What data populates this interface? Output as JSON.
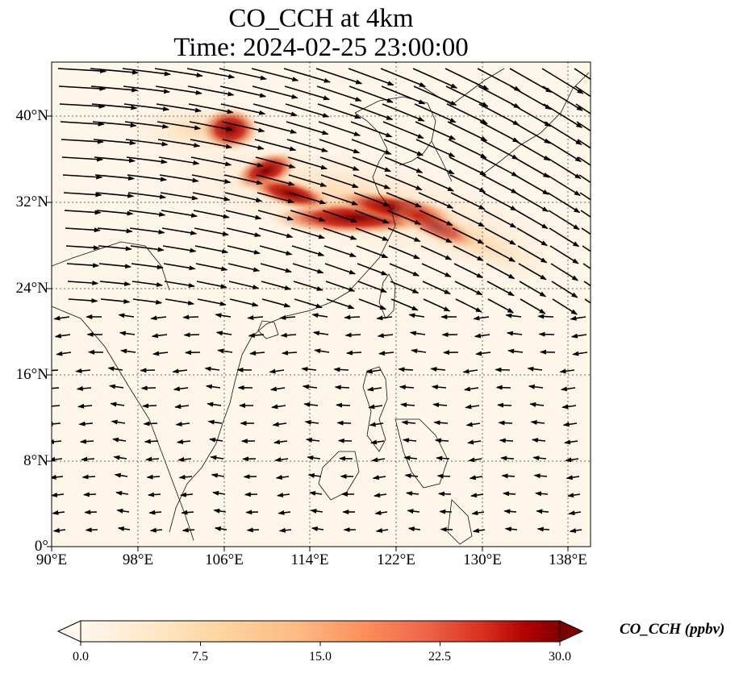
{
  "figure": {
    "title_line1": "CO_CCH at 4km",
    "title_line2": "Time: 2024-02-25 23:00:00"
  },
  "map": {
    "lon_labels": [
      "90°E",
      "98°E",
      "106°E",
      "114°E",
      "122°E",
      "130°E",
      "138°E"
    ],
    "lat_labels": [
      "40°N",
      "32°N",
      "24°N",
      "16°N",
      "8°N",
      "0°"
    ],
    "lon_range": [
      90,
      140
    ],
    "lat_range": [
      0,
      45
    ],
    "gridlines": "dotted",
    "overlay": "wind-vectors"
  },
  "colorbar": {
    "label": "CO_CCH (ppbv)",
    "ticks": [
      "0.0",
      "7.5",
      "15.0",
      "22.5",
      "30.0"
    ],
    "range": [
      0,
      30
    ],
    "colormap": "OrRd",
    "extend": "both"
  }
}
